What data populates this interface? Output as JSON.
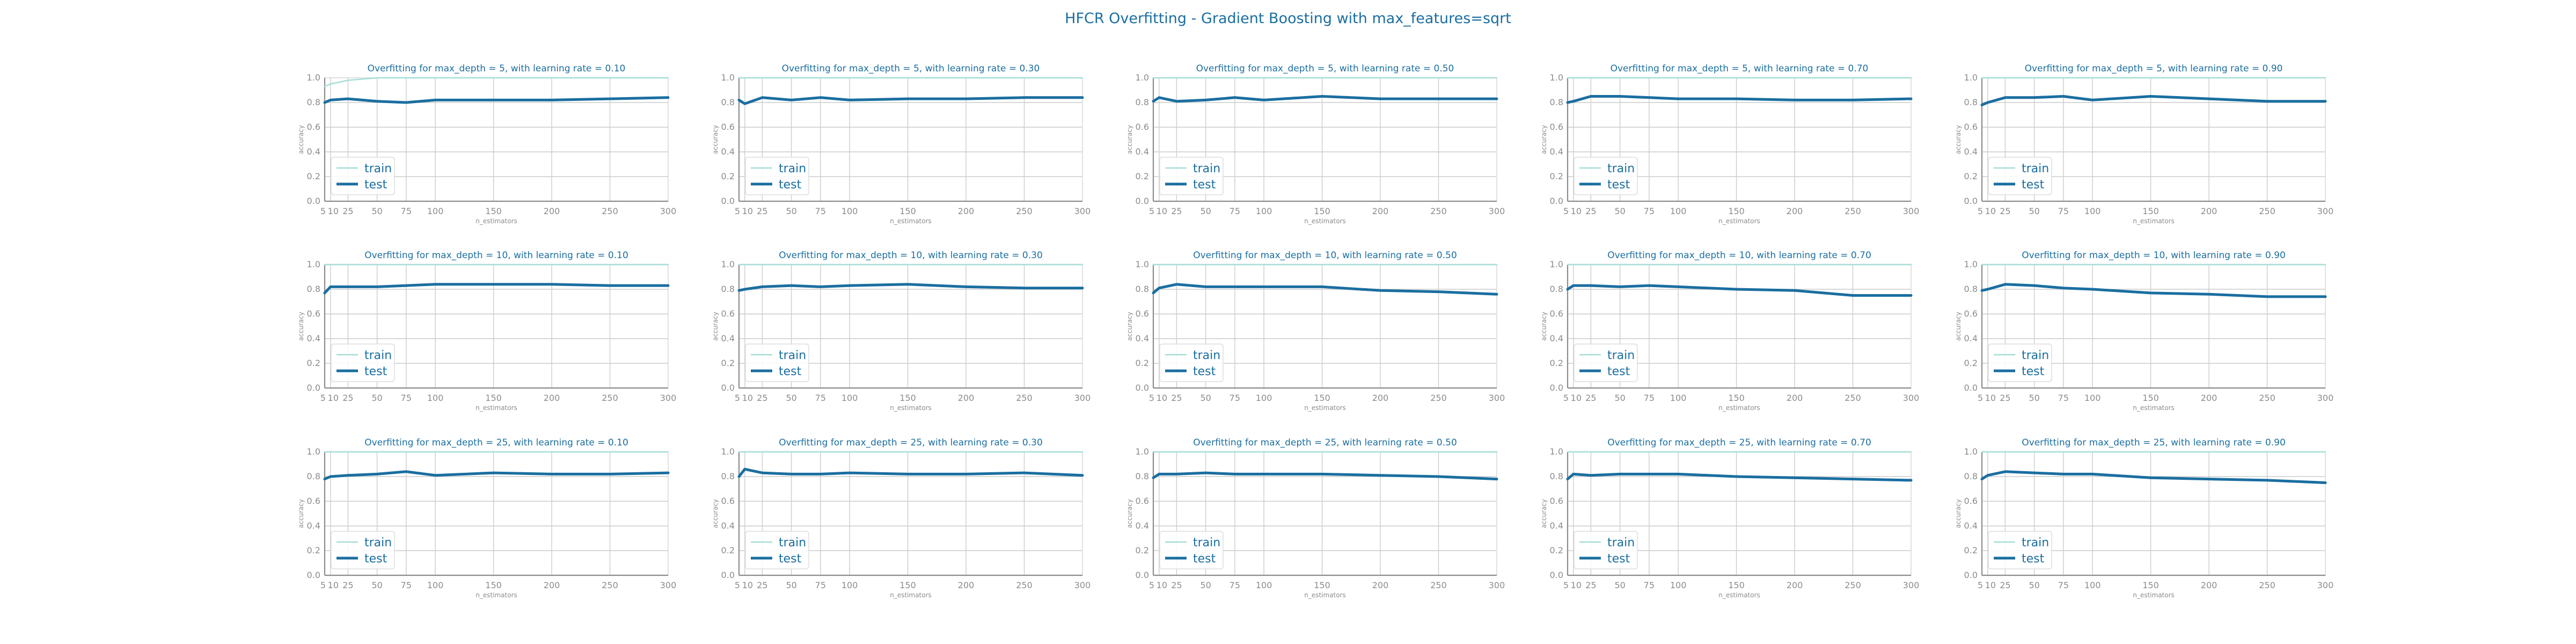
{
  "suptitle": "HFCR Overfitting - Gradient Boosting with max_features=sqrt",
  "colors": {
    "text": "#1a6ea0",
    "train": "#a6ded6",
    "test": "#1a6ea0",
    "grid": "#cccccc",
    "axis": "#8c8c8c"
  },
  "chart_data": [
    {
      "type": "line",
      "title": "Overfitting for max_depth = 5, with learning rate = 0.10",
      "xlabel": "n_estimators",
      "ylabel": "accuracy",
      "xlim": [
        5,
        300
      ],
      "ylim": [
        0,
        1
      ],
      "grid": true,
      "legend": "lower-left",
      "x": [
        5,
        10,
        25,
        50,
        75,
        100,
        150,
        200,
        250,
        300
      ],
      "series": [
        {
          "name": "train",
          "values": [
            0.93,
            0.95,
            0.98,
            1.0,
            1.0,
            1.0,
            1.0,
            1.0,
            1.0,
            1.0
          ]
        },
        {
          "name": "test",
          "values": [
            0.8,
            0.82,
            0.83,
            0.81,
            0.8,
            0.82,
            0.82,
            0.82,
            0.83,
            0.84
          ]
        }
      ]
    },
    {
      "type": "line",
      "title": "Overfitting for max_depth = 5, with learning rate = 0.30",
      "xlabel": "n_estimators",
      "ylabel": "accuracy",
      "xlim": [
        5,
        300
      ],
      "ylim": [
        0,
        1
      ],
      "grid": true,
      "legend": "lower-left",
      "x": [
        5,
        10,
        25,
        50,
        75,
        100,
        150,
        200,
        250,
        300
      ],
      "series": [
        {
          "name": "train",
          "values": [
            1.0,
            1.0,
            1.0,
            1.0,
            1.0,
            1.0,
            1.0,
            1.0,
            1.0,
            1.0
          ]
        },
        {
          "name": "test",
          "values": [
            0.82,
            0.79,
            0.84,
            0.82,
            0.84,
            0.82,
            0.83,
            0.83,
            0.84,
            0.84
          ]
        }
      ]
    },
    {
      "type": "line",
      "title": "Overfitting for max_depth = 5, with learning rate = 0.50",
      "xlabel": "n_estimators",
      "ylabel": "accuracy",
      "xlim": [
        5,
        300
      ],
      "ylim": [
        0,
        1
      ],
      "grid": true,
      "legend": "lower-left",
      "x": [
        5,
        10,
        25,
        50,
        75,
        100,
        150,
        200,
        250,
        300
      ],
      "series": [
        {
          "name": "train",
          "values": [
            1.0,
            1.0,
            1.0,
            1.0,
            1.0,
            1.0,
            1.0,
            1.0,
            1.0,
            1.0
          ]
        },
        {
          "name": "test",
          "values": [
            0.81,
            0.84,
            0.81,
            0.82,
            0.84,
            0.82,
            0.85,
            0.83,
            0.83,
            0.83
          ]
        }
      ]
    },
    {
      "type": "line",
      "title": "Overfitting for max_depth = 5, with learning rate = 0.70",
      "xlabel": "n_estimators",
      "ylabel": "accuracy",
      "xlim": [
        5,
        300
      ],
      "ylim": [
        0,
        1
      ],
      "grid": true,
      "legend": "lower-left",
      "x": [
        5,
        10,
        25,
        50,
        75,
        100,
        150,
        200,
        250,
        300
      ],
      "series": [
        {
          "name": "train",
          "values": [
            1.0,
            1.0,
            1.0,
            1.0,
            1.0,
            1.0,
            1.0,
            1.0,
            1.0,
            1.0
          ]
        },
        {
          "name": "test",
          "values": [
            0.8,
            0.81,
            0.85,
            0.85,
            0.84,
            0.83,
            0.83,
            0.82,
            0.82,
            0.83
          ]
        }
      ]
    },
    {
      "type": "line",
      "title": "Overfitting for max_depth = 5, with learning rate = 0.90",
      "xlabel": "n_estimators",
      "ylabel": "accuracy",
      "xlim": [
        5,
        300
      ],
      "ylim": [
        0,
        1
      ],
      "grid": true,
      "legend": "lower-left",
      "x": [
        5,
        10,
        25,
        50,
        75,
        100,
        150,
        200,
        250,
        300
      ],
      "series": [
        {
          "name": "train",
          "values": [
            1.0,
            1.0,
            1.0,
            1.0,
            1.0,
            1.0,
            1.0,
            1.0,
            1.0,
            1.0
          ]
        },
        {
          "name": "test",
          "values": [
            0.78,
            0.8,
            0.84,
            0.84,
            0.85,
            0.82,
            0.85,
            0.83,
            0.81,
            0.81
          ]
        }
      ]
    },
    {
      "type": "line",
      "title": "Overfitting for max_depth = 10, with learning rate = 0.10",
      "xlabel": "n_estimators",
      "ylabel": "accuracy",
      "xlim": [
        5,
        300
      ],
      "ylim": [
        0,
        1
      ],
      "grid": true,
      "legend": "lower-left",
      "x": [
        5,
        10,
        25,
        50,
        75,
        100,
        150,
        200,
        250,
        300
      ],
      "series": [
        {
          "name": "train",
          "values": [
            1.0,
            1.0,
            1.0,
            1.0,
            1.0,
            1.0,
            1.0,
            1.0,
            1.0,
            1.0
          ]
        },
        {
          "name": "test",
          "values": [
            0.77,
            0.82,
            0.82,
            0.82,
            0.83,
            0.84,
            0.84,
            0.84,
            0.83,
            0.83
          ]
        }
      ]
    },
    {
      "type": "line",
      "title": "Overfitting for max_depth = 10, with learning rate = 0.30",
      "xlabel": "n_estimators",
      "ylabel": "accuracy",
      "xlim": [
        5,
        300
      ],
      "ylim": [
        0,
        1
      ],
      "grid": true,
      "legend": "lower-left",
      "x": [
        5,
        10,
        25,
        50,
        75,
        100,
        150,
        200,
        250,
        300
      ],
      "series": [
        {
          "name": "train",
          "values": [
            1.0,
            1.0,
            1.0,
            1.0,
            1.0,
            1.0,
            1.0,
            1.0,
            1.0,
            1.0
          ]
        },
        {
          "name": "test",
          "values": [
            0.79,
            0.8,
            0.82,
            0.83,
            0.82,
            0.83,
            0.84,
            0.82,
            0.81,
            0.81
          ]
        }
      ]
    },
    {
      "type": "line",
      "title": "Overfitting for max_depth = 10, with learning rate = 0.50",
      "xlabel": "n_estimators",
      "ylabel": "accuracy",
      "xlim": [
        5,
        300
      ],
      "ylim": [
        0,
        1
      ],
      "grid": true,
      "legend": "lower-left",
      "x": [
        5,
        10,
        25,
        50,
        75,
        100,
        150,
        200,
        250,
        300
      ],
      "series": [
        {
          "name": "train",
          "values": [
            1.0,
            1.0,
            1.0,
            1.0,
            1.0,
            1.0,
            1.0,
            1.0,
            1.0,
            1.0
          ]
        },
        {
          "name": "test",
          "values": [
            0.77,
            0.81,
            0.84,
            0.82,
            0.82,
            0.82,
            0.82,
            0.79,
            0.78,
            0.76
          ]
        }
      ]
    },
    {
      "type": "line",
      "title": "Overfitting for max_depth = 10, with learning rate = 0.70",
      "xlabel": "n_estimators",
      "ylabel": "accuracy",
      "xlim": [
        5,
        300
      ],
      "ylim": [
        0,
        1
      ],
      "grid": true,
      "legend": "lower-left",
      "x": [
        5,
        10,
        25,
        50,
        75,
        100,
        150,
        200,
        250,
        300
      ],
      "series": [
        {
          "name": "train",
          "values": [
            1.0,
            1.0,
            1.0,
            1.0,
            1.0,
            1.0,
            1.0,
            1.0,
            1.0,
            1.0
          ]
        },
        {
          "name": "test",
          "values": [
            0.8,
            0.83,
            0.83,
            0.82,
            0.83,
            0.82,
            0.8,
            0.79,
            0.75,
            0.75
          ]
        }
      ]
    },
    {
      "type": "line",
      "title": "Overfitting for max_depth = 10, with learning rate = 0.90",
      "xlabel": "n_estimators",
      "ylabel": "accuracy",
      "xlim": [
        5,
        300
      ],
      "ylim": [
        0,
        1
      ],
      "grid": true,
      "legend": "lower-left",
      "x": [
        5,
        10,
        25,
        50,
        75,
        100,
        150,
        200,
        250,
        300
      ],
      "series": [
        {
          "name": "train",
          "values": [
            1.0,
            1.0,
            1.0,
            1.0,
            1.0,
            1.0,
            1.0,
            1.0,
            1.0,
            1.0
          ]
        },
        {
          "name": "test",
          "values": [
            0.79,
            0.8,
            0.84,
            0.83,
            0.81,
            0.8,
            0.77,
            0.76,
            0.74,
            0.74
          ]
        }
      ]
    },
    {
      "type": "line",
      "title": "Overfitting for max_depth = 25, with learning rate = 0.10",
      "xlabel": "n_estimators",
      "ylabel": "accuracy",
      "xlim": [
        5,
        300
      ],
      "ylim": [
        0,
        1
      ],
      "grid": true,
      "legend": "lower-left",
      "x": [
        5,
        10,
        25,
        50,
        75,
        100,
        150,
        200,
        250,
        300
      ],
      "series": [
        {
          "name": "train",
          "values": [
            1.0,
            1.0,
            1.0,
            1.0,
            1.0,
            1.0,
            1.0,
            1.0,
            1.0,
            1.0
          ]
        },
        {
          "name": "test",
          "values": [
            0.78,
            0.8,
            0.81,
            0.82,
            0.84,
            0.81,
            0.83,
            0.82,
            0.82,
            0.83
          ]
        }
      ]
    },
    {
      "type": "line",
      "title": "Overfitting for max_depth = 25, with learning rate = 0.30",
      "xlabel": "n_estimators",
      "ylabel": "accuracy",
      "xlim": [
        5,
        300
      ],
      "ylim": [
        0,
        1
      ],
      "grid": true,
      "legend": "lower-left",
      "x": [
        5,
        10,
        25,
        50,
        75,
        100,
        150,
        200,
        250,
        300
      ],
      "series": [
        {
          "name": "train",
          "values": [
            1.0,
            1.0,
            1.0,
            1.0,
            1.0,
            1.0,
            1.0,
            1.0,
            1.0,
            1.0
          ]
        },
        {
          "name": "test",
          "values": [
            0.8,
            0.86,
            0.83,
            0.82,
            0.82,
            0.83,
            0.82,
            0.82,
            0.83,
            0.81
          ]
        }
      ]
    },
    {
      "type": "line",
      "title": "Overfitting for max_depth = 25, with learning rate = 0.50",
      "xlabel": "n_estimators",
      "ylabel": "accuracy",
      "xlim": [
        5,
        300
      ],
      "ylim": [
        0,
        1
      ],
      "grid": true,
      "legend": "lower-left",
      "x": [
        5,
        10,
        25,
        50,
        75,
        100,
        150,
        200,
        250,
        300
      ],
      "series": [
        {
          "name": "train",
          "values": [
            1.0,
            1.0,
            1.0,
            1.0,
            1.0,
            1.0,
            1.0,
            1.0,
            1.0,
            1.0
          ]
        },
        {
          "name": "test",
          "values": [
            0.79,
            0.82,
            0.82,
            0.83,
            0.82,
            0.82,
            0.82,
            0.81,
            0.8,
            0.78
          ]
        }
      ]
    },
    {
      "type": "line",
      "title": "Overfitting for max_depth = 25, with learning rate = 0.70",
      "xlabel": "n_estimators",
      "ylabel": "accuracy",
      "xlim": [
        5,
        300
      ],
      "ylim": [
        0,
        1
      ],
      "grid": true,
      "legend": "lower-left",
      "x": [
        5,
        10,
        25,
        50,
        75,
        100,
        150,
        200,
        250,
        300
      ],
      "series": [
        {
          "name": "train",
          "values": [
            1.0,
            1.0,
            1.0,
            1.0,
            1.0,
            1.0,
            1.0,
            1.0,
            1.0,
            1.0
          ]
        },
        {
          "name": "test",
          "values": [
            0.78,
            0.82,
            0.81,
            0.82,
            0.82,
            0.82,
            0.8,
            0.79,
            0.78,
            0.77
          ]
        }
      ]
    },
    {
      "type": "line",
      "title": "Overfitting for max_depth = 25, with learning rate = 0.90",
      "xlabel": "n_estimators",
      "ylabel": "accuracy",
      "xlim": [
        5,
        300
      ],
      "ylim": [
        0,
        1
      ],
      "grid": true,
      "legend": "lower-left",
      "x": [
        5,
        10,
        25,
        50,
        75,
        100,
        150,
        200,
        250,
        300
      ],
      "series": [
        {
          "name": "train",
          "values": [
            1.0,
            1.0,
            1.0,
            1.0,
            1.0,
            1.0,
            1.0,
            1.0,
            1.0,
            1.0
          ]
        },
        {
          "name": "test",
          "values": [
            0.78,
            0.81,
            0.84,
            0.83,
            0.82,
            0.82,
            0.79,
            0.78,
            0.77,
            0.75
          ]
        }
      ]
    }
  ]
}
